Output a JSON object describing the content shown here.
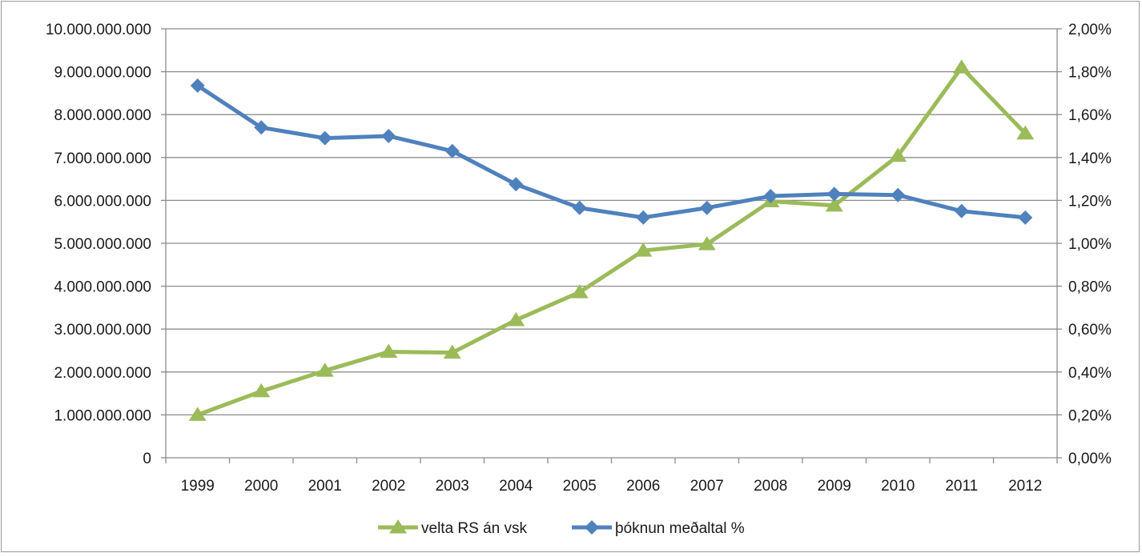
{
  "chart_data": {
    "type": "line",
    "categories": [
      "1999",
      "2000",
      "2001",
      "2002",
      "2003",
      "2004",
      "2005",
      "2006",
      "2007",
      "2008",
      "2009",
      "2010",
      "2011",
      "2012"
    ],
    "series": [
      {
        "name": "velta RS án vsk",
        "axis": "left",
        "color": "#9bbb59",
        "marker": "triangle",
        "values": [
          1000000000,
          1550000000,
          2030000000,
          2470000000,
          2450000000,
          3210000000,
          3860000000,
          4830000000,
          4980000000,
          5980000000,
          5880000000,
          7040000000,
          9100000000,
          7560000000
        ]
      },
      {
        "name": "þóknun meðaltal %",
        "axis": "right",
        "color": "#4f81bd",
        "marker": "diamond",
        "values": [
          1.735,
          1.54,
          1.49,
          1.5,
          1.43,
          1.275,
          1.165,
          1.12,
          1.165,
          1.22,
          1.23,
          1.225,
          1.15,
          1.12
        ]
      }
    ],
    "y_left": {
      "ylim": [
        0,
        10000000000
      ],
      "ticks": [
        "0",
        "1.000.000.000",
        "2.000.000.000",
        "3.000.000.000",
        "4.000.000.000",
        "5.000.000.000",
        "6.000.000.000",
        "7.000.000.000",
        "8.000.000.000",
        "9.000.000.000",
        "10.000.000.000"
      ]
    },
    "y_right": {
      "ylim": [
        0,
        2.0
      ],
      "ticks": [
        "0,00%",
        "0,20%",
        "0,40%",
        "0,60%",
        "0,80%",
        "1,00%",
        "1,20%",
        "1,40%",
        "1,60%",
        "1,80%",
        "2,00%"
      ]
    },
    "grid": true,
    "legend": "bottom"
  }
}
